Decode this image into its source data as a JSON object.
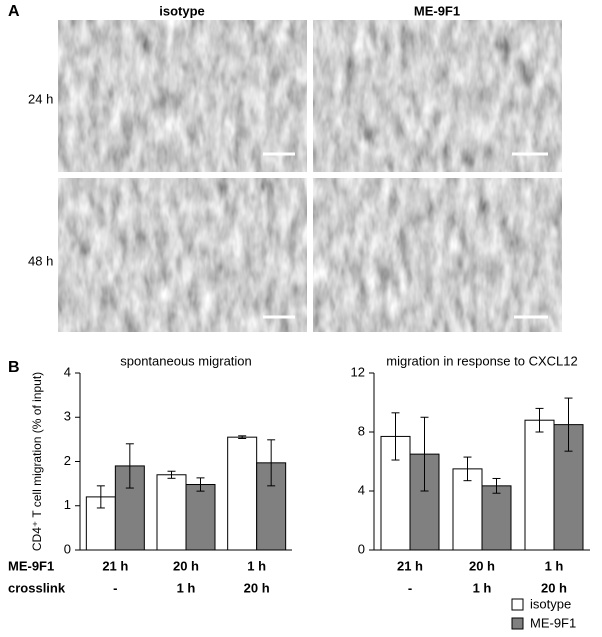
{
  "panel_a": {
    "label": "A",
    "columns": [
      "isotype",
      "ME-9F1"
    ],
    "rows": [
      "24 h",
      "48 h"
    ]
  },
  "panel_b": {
    "label": "B",
    "row_labels": [
      "ME-9F1",
      "crosslink"
    ]
  },
  "chart_data": [
    {
      "type": "bar",
      "title": "spontaneous migration",
      "y_label": "CD4⁺ T cell migration (% of input)",
      "categories": [
        "21 h",
        "20 h",
        "1 h"
      ],
      "categories2": [
        "-",
        "1 h",
        "20 h"
      ],
      "series": [
        {
          "name": "isotype",
          "color": "#ffffff",
          "values": [
            1.2,
            1.7,
            2.55
          ],
          "errors": [
            0.25,
            0.08,
            0.03
          ]
        },
        {
          "name": "ME-9F1",
          "color": "#808080",
          "values": [
            1.9,
            1.48,
            1.97
          ],
          "errors": [
            0.5,
            0.15,
            0.52
          ]
        }
      ],
      "ylim": [
        0,
        4
      ],
      "yticks": [
        0,
        1,
        2,
        3,
        4
      ]
    },
    {
      "type": "bar",
      "title": "migration in response to CXCL12",
      "categories": [
        "21 h",
        "20 h",
        "1 h"
      ],
      "categories2": [
        "-",
        "1 h",
        "20 h"
      ],
      "series": [
        {
          "name": "isotype",
          "color": "#ffffff",
          "values": [
            7.7,
            5.5,
            8.8
          ],
          "errors": [
            1.6,
            0.8,
            0.8
          ]
        },
        {
          "name": "ME-9F1",
          "color": "#808080",
          "values": [
            6.5,
            4.35,
            8.5
          ],
          "errors": [
            2.5,
            0.5,
            1.8
          ]
        }
      ],
      "ylim": [
        0,
        12
      ],
      "yticks": [
        0,
        4,
        8,
        12
      ]
    }
  ]
}
